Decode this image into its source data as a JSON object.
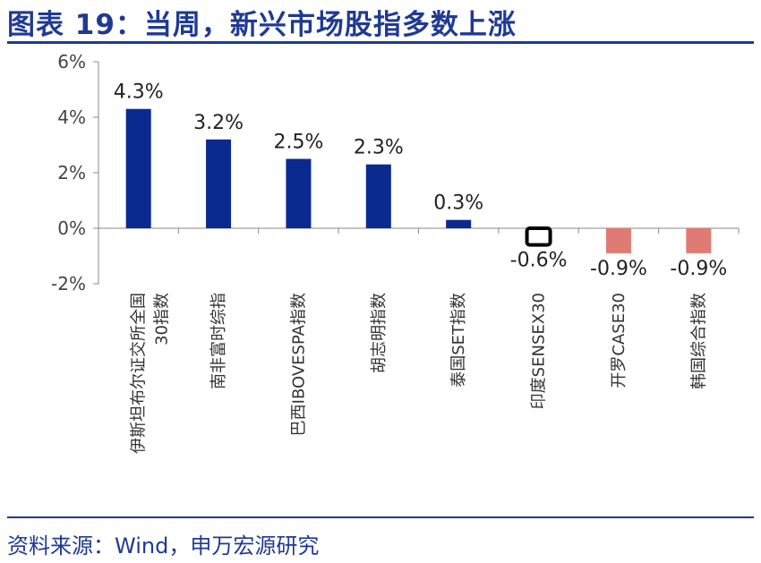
{
  "title": "图表 19：当周，新兴市场股指多数上涨",
  "source": "资料来源：Wind，申万宏源研究",
  "chart_data": {
    "type": "bar",
    "title": "",
    "xlabel": "",
    "ylabel": "",
    "ylim": [
      -2,
      6
    ],
    "yticks": [
      6,
      4,
      2,
      0,
      -2
    ],
    "ytick_labels": [
      "6%",
      "4%",
      "2%",
      "0%",
      "-2%"
    ],
    "categories": [
      [
        "伊斯坦布尔证交所全国",
        "30指数"
      ],
      [
        "南非富时综指"
      ],
      [
        "巴西IBOVESPA指数"
      ],
      [
        "胡志明指数"
      ],
      [
        "泰国SET指数"
      ],
      [
        "印度SENSEX30"
      ],
      [
        "开罗CASE30"
      ],
      [
        "韩国综合指数"
      ]
    ],
    "values": [
      4.3,
      3.2,
      2.5,
      2.3,
      0.3,
      -0.6,
      -0.9,
      -0.9
    ],
    "data_labels": [
      "4.3%",
      "3.2%",
      "2.5%",
      "2.3%",
      "0.3%",
      "-0.6%",
      "-0.9%",
      "-0.9%"
    ],
    "bar_colors": [
      "#0a2a8f",
      "#0a2a8f",
      "#0a2a8f",
      "#0a2a8f",
      "#0a2a8f",
      "#ffffff",
      "#e07a72",
      "#e07a72"
    ],
    "bar_borders": [
      "none",
      "none",
      "none",
      "none",
      "none",
      "#000000",
      "none",
      "none"
    ],
    "grid": false,
    "legend": "none"
  }
}
